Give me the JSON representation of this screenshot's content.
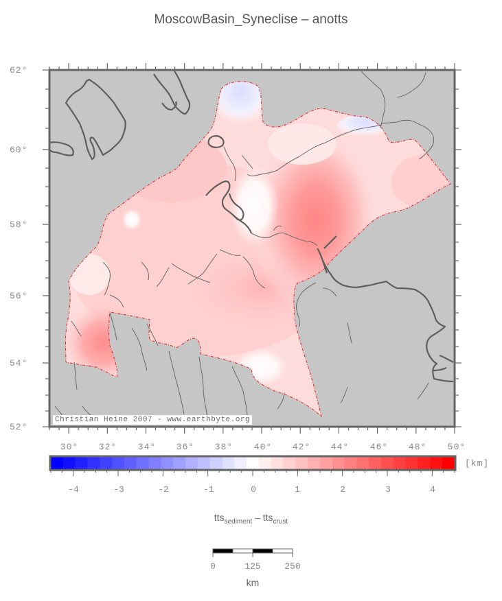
{
  "title": "MoscowBasin_Syneclise – anotts",
  "map": {
    "background_color": "#c6c6c6",
    "frame_color": "#666666",
    "outline_color": "#e02020",
    "lat_labels": [
      "62°",
      "60°",
      "58°",
      "56°",
      "54°",
      "52°"
    ],
    "lon_labels": [
      "30°",
      "32°",
      "34°",
      "36°",
      "38°",
      "40°",
      "42°",
      "44°",
      "46°",
      "48°",
      "50°"
    ],
    "credit": "Christian Heine 2007 - www.earthbyte.org"
  },
  "colorbar": {
    "tick_labels": [
      "-4",
      "-3",
      "-2",
      "-1",
      "0",
      "1",
      "2",
      "3",
      "4"
    ],
    "unit": "[km]",
    "min": -4.5,
    "max": 4.5,
    "colors": [
      "#0000ff",
      "#1010ff",
      "#2020ff",
      "#3030ff",
      "#4040ff",
      "#5050ff",
      "#6060ff",
      "#7070ff",
      "#8080ff",
      "#9090ff",
      "#a0a0ff",
      "#b0b0ff",
      "#c0c0ff",
      "#d0d0ff",
      "#e0e0ff",
      "#f0f0ff",
      "#ffffff",
      "#fff0f0",
      "#ffe0e0",
      "#ffd0d0",
      "#ffc0c0",
      "#ffb0b0",
      "#ffa0a0",
      "#ff9090",
      "#ff8080",
      "#ff7070",
      "#ff6060",
      "#ff5050",
      "#ff4040",
      "#ff3030",
      "#ff2020",
      "#ff1010",
      "#ff0000"
    ]
  },
  "formula": {
    "main1": "tts",
    "sub1": "sediment",
    "dash": " – ",
    "main2": "tts",
    "sub2": "crust"
  },
  "scalebar": {
    "labels": [
      "0",
      "125",
      "250"
    ],
    "unit": "km"
  }
}
